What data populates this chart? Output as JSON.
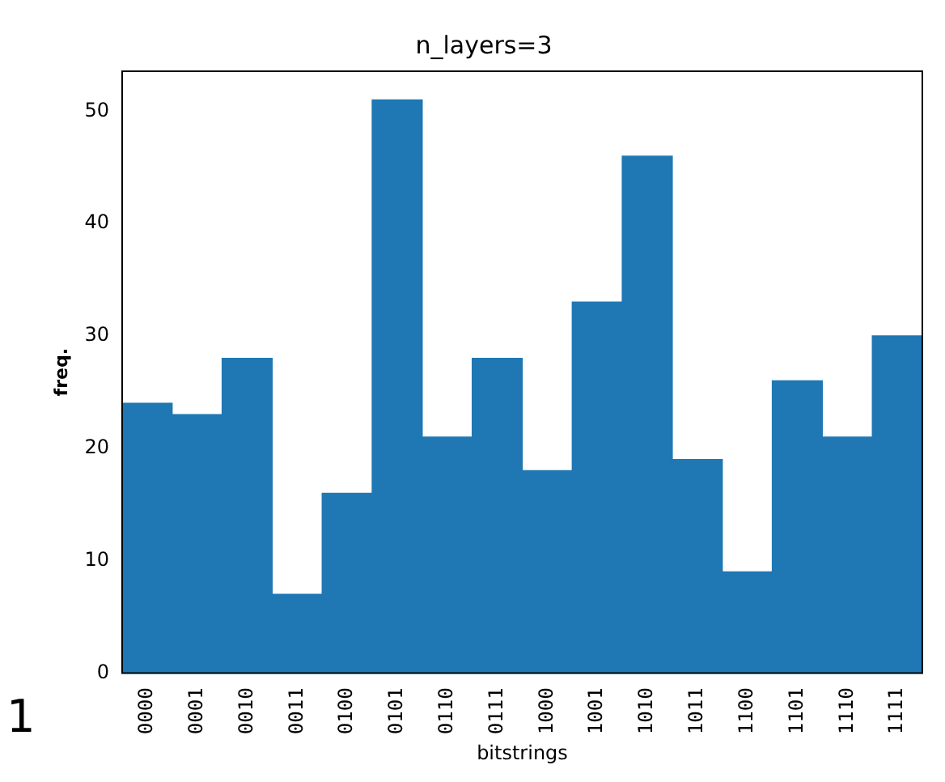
{
  "chart_data": {
    "type": "bar",
    "title": "n_layers=3",
    "xlabel": "bitstrings",
    "ylabel": "freq.",
    "categories": [
      "0000",
      "0001",
      "0010",
      "0011",
      "0100",
      "0101",
      "0110",
      "0111",
      "1000",
      "1001",
      "1010",
      "1011",
      "1100",
      "1101",
      "1110",
      "1111"
    ],
    "values": [
      24,
      23,
      28,
      7,
      16,
      51,
      21,
      28,
      18,
      33,
      46,
      19,
      9,
      26,
      21,
      30
    ],
    "color": "#1f77b4",
    "ylim": [
      0,
      53.55
    ],
    "yticks": [
      0,
      10,
      20,
      30,
      40,
      50
    ],
    "grid": false,
    "legend": false,
    "annotations": [
      "1"
    ]
  }
}
